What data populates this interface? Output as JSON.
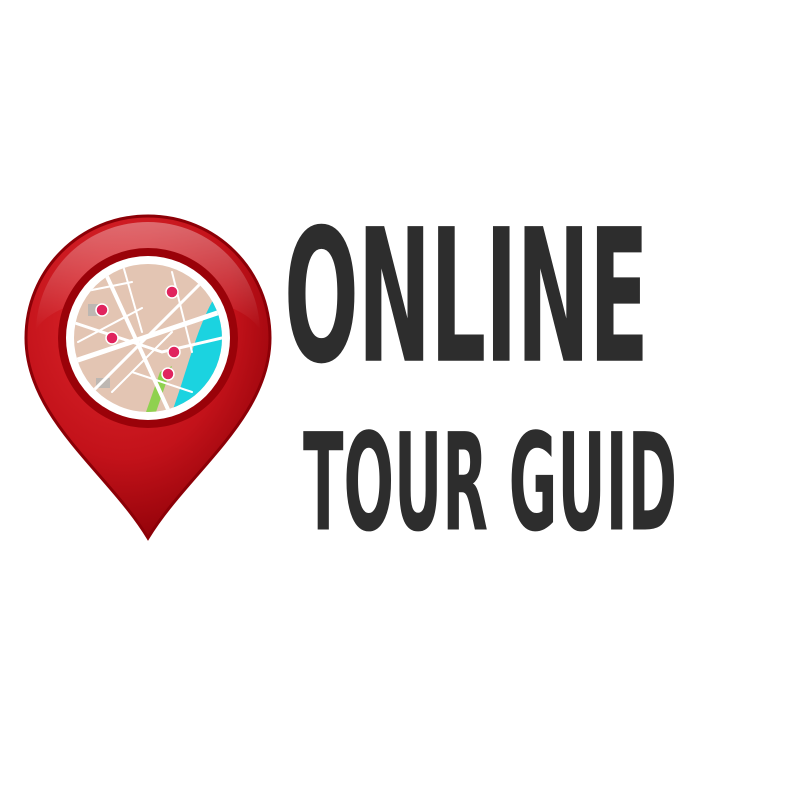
{
  "logo": {
    "icon": "map-pin-icon",
    "line1": "ONLINE",
    "line2": "TOUR GUID"
  },
  "colors": {
    "background": "#ffffff",
    "pin_red": "#c3121a",
    "pin_dark": "#8c0007",
    "text": "#2d2d2d",
    "map_land": "#e3c5b3",
    "map_roads": "#ffffff",
    "map_water": "#1bd3e0",
    "map_park": "#8fd14f",
    "marker": "#e0245e"
  }
}
